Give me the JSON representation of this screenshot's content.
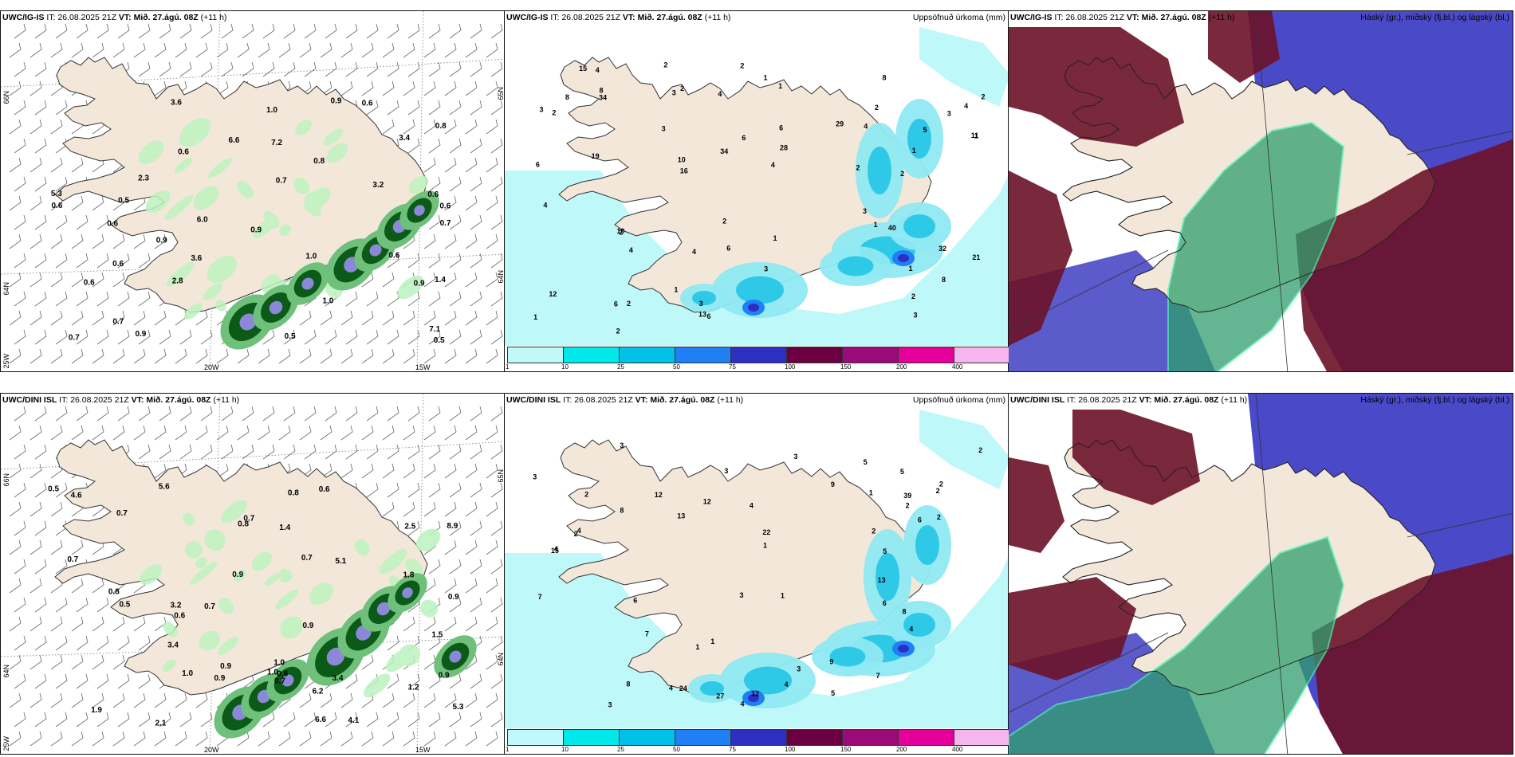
{
  "panels": [
    {
      "model": "UWC/IG-IS",
      "it_label": "IT:",
      "it_value": "26.08.2025 21Z",
      "vt_label": "VT:",
      "vt_value": "Mið. 27.ágú. 08Z",
      "lead": "(+11 h)",
      "right_title": "",
      "kind": "wind",
      "lat_labels": [
        "66N",
        "64N",
        "25W",
        "65N",
        "64N"
      ],
      "lon_labels": [
        "20W",
        "15W"
      ],
      "values": [
        "0.6",
        "0.6",
        "0.8",
        "0.6",
        "6.0",
        "1.4",
        "3.6",
        "0.9",
        "0.9",
        "3.4",
        "2.3",
        "0.6",
        "3.2",
        "2.8",
        "0.6",
        "0.9",
        "0.9",
        "5.3",
        "3.6",
        "6.6",
        "7.1",
        "7.2",
        "0.7",
        "0.6",
        "0.7",
        "0.6",
        "0.7",
        "1.0",
        "0.5",
        "0.8",
        "0.9",
        "0.5",
        "0.6",
        "1.0",
        "0.5",
        "0.6",
        "0.7",
        "1.0"
      ]
    },
    {
      "model": "UWC/IG-IS",
      "it_label": "IT:",
      "it_value": "26.08.2025 21Z",
      "vt_label": "VT:",
      "vt_value": "Mið. 27.ágú. 08Z",
      "lead": "(+11 h)",
      "right_title": "Uppsöfnuð úrkoma (mm)",
      "kind": "precip",
      "values": [
        "2",
        "1",
        "1",
        "2",
        "2",
        "1",
        "2",
        "2",
        "2",
        "4",
        "3",
        "1",
        "2",
        "3",
        "2",
        "6",
        "4",
        "3",
        "3",
        "3",
        "1",
        "1",
        "8",
        "4",
        "2",
        "6",
        "2",
        "1",
        "2",
        "1",
        "4",
        "8",
        "8",
        "21",
        "2",
        "1",
        "6",
        "3",
        "4",
        "19",
        "13",
        "10",
        "28",
        "16",
        "6",
        "4",
        "3",
        "4",
        "29",
        "32",
        "4",
        "12",
        "34",
        "40",
        "34",
        "5",
        "11",
        "15",
        "10",
        "6",
        "6",
        "8",
        "3",
        "2"
      ]
    },
    {
      "model": "UWC/IG-IS",
      "it_label": "IT:",
      "it_value": "26.08.2025 21Z",
      "vt_label": "VT:",
      "vt_value": "Mið. 27.ágú. 08Z",
      "lead": "(+11 h)",
      "right_title": "Háský (gr.), miðský (fj.bl.) og lágský (bl.)",
      "kind": "cloud"
    },
    {
      "model": "UWC/DINI ISL",
      "it_label": "IT:",
      "it_value": "26.08.2025 21Z",
      "vt_label": "VT:",
      "vt_value": "Mið. 27.ágú. 08Z",
      "lead": "(+11 h)",
      "right_title": "",
      "kind": "wind",
      "lat_labels": [
        "66N",
        "64N",
        "25W",
        "65N",
        "64N"
      ],
      "lon_labels": [
        "20W",
        "15W"
      ],
      "values": [
        "1.2",
        "0.9",
        "1.0",
        "0.8",
        "3.4",
        "5.1",
        "4.1",
        "5.3",
        "0.7",
        "6.2",
        "0.8",
        "3.2",
        "0.6",
        "1.0",
        "0.9",
        "1.9",
        "0.8",
        "2.5",
        "1.0",
        "5.6",
        "8.9",
        "6.6",
        "3.4",
        "4.6",
        "0.9",
        "1.8",
        "0.7",
        "1.5",
        "0.6",
        "0.7",
        "0.6",
        "0.9",
        "0.7",
        "0.9",
        "0.5",
        "0.5",
        "0.9",
        "2.1",
        "0.7",
        "0.7",
        "1.4"
      ]
    },
    {
      "model": "UWC/DINI ISL",
      "it_label": "IT:",
      "it_value": "26.08.2025 21Z",
      "vt_label": "VT:",
      "vt_value": "Mið. 27.ágú. 08Z",
      "lead": "(+11 h)",
      "right_title": "Uppsöfnuð úrkoma (mm)",
      "kind": "precip",
      "values": [
        "1",
        "1",
        "3",
        "3",
        "3",
        "4",
        "2",
        "2",
        "3",
        "2",
        "2",
        "1",
        "2",
        "3",
        "4",
        "5",
        "6",
        "7",
        "7",
        "6",
        "2",
        "22",
        "27",
        "4",
        "7",
        "12",
        "12",
        "13",
        "24",
        "39",
        "15",
        "12",
        "4",
        "5",
        "9",
        "9",
        "8",
        "5",
        "5",
        "1",
        "4",
        "3",
        "3",
        "2",
        "6",
        "8",
        "8",
        "4",
        "2",
        "13",
        "4",
        "1"
      ]
    },
    {
      "model": "UWC/DINI ISL",
      "it_label": "IT:",
      "it_value": "26.08.2025 21Z",
      "vt_label": "VT:",
      "vt_value": "Mið. 27.ágú. 08Z",
      "lead": "(+11 h)",
      "right_title": "Háský (gr.), miðský (fj.bl.) og lágský (bl.)",
      "kind": "cloud"
    }
  ],
  "colorbar": {
    "ticks": [
      "1",
      "10",
      "25",
      "50",
      "75",
      "100",
      "150",
      "200",
      "400"
    ],
    "colors": [
      "#bff9fa",
      "#00e9ea",
      "#00c2e8",
      "#1f7ff4",
      "#2c2fc2",
      "#6a0041",
      "#9c0a79",
      "#e6009b",
      "#f5b6ee"
    ]
  },
  "colors": {
    "land": "#f3e7da",
    "precip_light": "#bff8f8",
    "green_light": "#bdf3c0",
    "green_dark": "#0c5a18",
    "cloud_high": "#2f9e6d",
    "cloud_mid": "#6b1228",
    "cloud_low": "#4a49c7"
  }
}
